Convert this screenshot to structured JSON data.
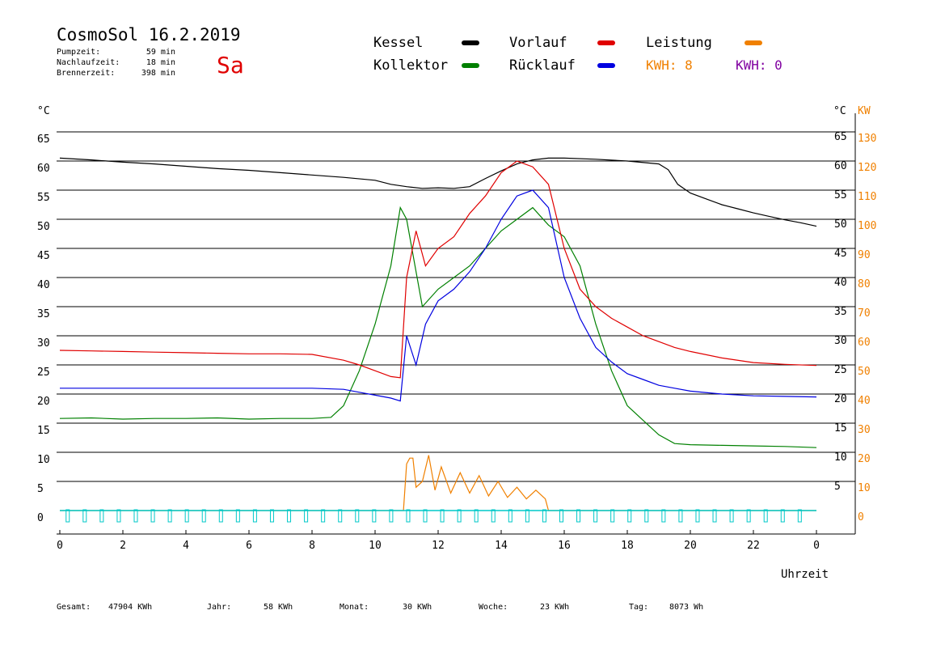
{
  "header": {
    "title": "CosmoSol 16.2.2019",
    "day": "Sa",
    "stats": [
      {
        "label": "Pumpzeit:",
        "value": "59 min"
      },
      {
        "label": "Nachlaufzeit:",
        "value": "18 min"
      },
      {
        "label": "Brennerzeit:",
        "value": "398 min"
      }
    ]
  },
  "legend": {
    "items": [
      {
        "label": "Kessel",
        "color": "#000000"
      },
      {
        "label": "Kollektor",
        "color": "#008000"
      },
      {
        "label": "Vorlauf",
        "color": "#e00000"
      },
      {
        "label": "Rücklauf",
        "color": "#0000e0"
      },
      {
        "label": "Leistung",
        "color": "#f08000"
      }
    ],
    "kwh": [
      {
        "label": "KWH:",
        "value": "8",
        "color": "#f08000"
      },
      {
        "label": "KWH:",
        "value": "0",
        "color": "#8000a0"
      }
    ]
  },
  "footer": {
    "items": [
      {
        "label": "Gesamt:",
        "value": "47904 KWh"
      },
      {
        "label": "Jahr:",
        "value": "58 KWh"
      },
      {
        "label": "Monat:",
        "value": "30 KWh"
      },
      {
        "label": "Woche:",
        "value": "23 KWh"
      },
      {
        "label": "Tag:",
        "value": "8073 Wh"
      }
    ]
  },
  "chart_data": {
    "type": "line",
    "xlabel": "Uhrzeit",
    "x_ticks": [
      "0",
      "2",
      "4",
      "6",
      "8",
      "10",
      "12",
      "14",
      "16",
      "18",
      "20",
      "22",
      "0"
    ],
    "x_range": [
      0,
      24
    ],
    "y_left": {
      "unit": "°C",
      "ticks": [
        0,
        5,
        10,
        15,
        20,
        25,
        30,
        35,
        40,
        45,
        50,
        55,
        60,
        65
      ],
      "range": [
        0,
        69
      ]
    },
    "y_right": {
      "unit": "°C",
      "ticks": [
        5,
        10,
        15,
        20,
        25,
        30,
        35,
        40,
        45,
        50,
        55,
        60,
        65
      ]
    },
    "y_right2": {
      "unit": "KW",
      "color": "#f08000",
      "ticks": [
        0,
        10,
        20,
        30,
        40,
        50,
        60,
        70,
        80,
        90,
        100,
        110,
        120,
        130
      ]
    },
    "grid": true,
    "series": [
      {
        "name": "Kessel",
        "color": "#000000",
        "x": [
          0,
          1,
          2,
          3,
          4,
          5,
          6,
          7,
          8,
          9,
          10,
          10.5,
          11,
          11.5,
          12,
          12.5,
          13,
          13.5,
          14,
          14.5,
          15,
          15.5,
          16,
          17,
          18,
          19,
          19.3,
          19.6,
          20,
          20.5,
          21,
          21.5,
          22,
          22.5,
          23,
          23.5,
          24
        ],
        "y": [
          60.5,
          60.2,
          59.8,
          59.5,
          59.1,
          58.7,
          58.4,
          58,
          57.6,
          57.2,
          56.7,
          56,
          55.6,
          55.3,
          55.4,
          55.3,
          55.6,
          57,
          58.3,
          59.5,
          60.2,
          60.5,
          60.5,
          60.3,
          60,
          59.5,
          58.5,
          56,
          54.5,
          53.5,
          52.5,
          51.8,
          51.1,
          50.5,
          49.9,
          49.4,
          48.8
        ]
      },
      {
        "name": "Kollektor",
        "color": "#008000",
        "x": [
          0,
          1,
          2,
          3,
          4,
          5,
          6,
          7,
          8,
          8.6,
          9,
          9.5,
          10,
          10.5,
          10.8,
          11,
          11.5,
          12,
          12.5,
          13,
          13.5,
          14,
          14.5,
          15,
          15.5,
          16,
          16.5,
          17,
          17.5,
          18,
          18.5,
          19,
          19.5,
          20,
          21,
          22,
          23,
          24
        ],
        "y": [
          15.8,
          15.9,
          15.7,
          15.8,
          15.8,
          15.9,
          15.7,
          15.8,
          15.8,
          16,
          18,
          24,
          32,
          42,
          52,
          50,
          35,
          38,
          40,
          42,
          45,
          48,
          50,
          52,
          49,
          47,
          42,
          32,
          24,
          18,
          15.5,
          13,
          11.5,
          11.3,
          11.2,
          11.1,
          11,
          10.8
        ]
      },
      {
        "name": "Vorlauf",
        "color": "#e00000",
        "x": [
          0,
          1,
          2,
          3,
          4,
          5,
          6,
          7,
          8,
          9,
          9.5,
          10,
          10.5,
          10.8,
          11,
          11.3,
          11.6,
          12,
          12.5,
          13,
          13.5,
          14,
          14.5,
          15,
          15.5,
          16,
          16.5,
          17,
          17.5,
          18,
          18.5,
          19,
          19.5,
          20,
          21,
          22,
          23,
          24
        ],
        "y": [
          27.5,
          27.4,
          27.3,
          27.2,
          27.1,
          27,
          26.9,
          26.9,
          26.8,
          25.8,
          25,
          24,
          23,
          22.8,
          40,
          48,
          42,
          45,
          47,
          51,
          54,
          58,
          60,
          59,
          56,
          45,
          38,
          35,
          33,
          31.5,
          30,
          29,
          28,
          27.3,
          26.2,
          25.4,
          25.1,
          24.9
        ]
      },
      {
        "name": "Rücklauf",
        "color": "#0000e0",
        "x": [
          0,
          1,
          2,
          3,
          4,
          5,
          6,
          7,
          8,
          9,
          9.5,
          10,
          10.5,
          10.8,
          11,
          11.3,
          11.6,
          12,
          12.5,
          13,
          13.5,
          14,
          14.5,
          15,
          15.5,
          16,
          16.5,
          17,
          17.5,
          18,
          18.5,
          19,
          19.5,
          20,
          21,
          22,
          23,
          24
        ],
        "y": [
          21,
          21,
          21,
          21,
          21,
          21,
          21,
          21,
          21,
          20.8,
          20.3,
          19.8,
          19.3,
          18.8,
          30,
          25,
          32,
          36,
          38,
          41,
          45,
          50,
          54,
          55,
          52,
          40,
          33,
          28,
          25.5,
          23.5,
          22.5,
          21.5,
          21,
          20.5,
          20,
          19.7,
          19.6,
          19.5
        ]
      },
      {
        "name": "Leistung",
        "color": "#f08000",
        "x": [
          0,
          10.9,
          11,
          11.1,
          11.2,
          11.3,
          11.5,
          11.7,
          11.9,
          12.1,
          12.4,
          12.7,
          13,
          13.3,
          13.6,
          13.9,
          14.2,
          14.5,
          14.8,
          15.1,
          15.4,
          15.5,
          24
        ],
        "y": [
          0,
          0,
          16,
          18,
          18,
          8,
          10,
          19,
          7,
          15,
          6,
          13,
          6,
          12,
          5,
          10,
          4.5,
          8,
          4,
          7,
          4,
          0,
          0
        ]
      }
    ]
  }
}
